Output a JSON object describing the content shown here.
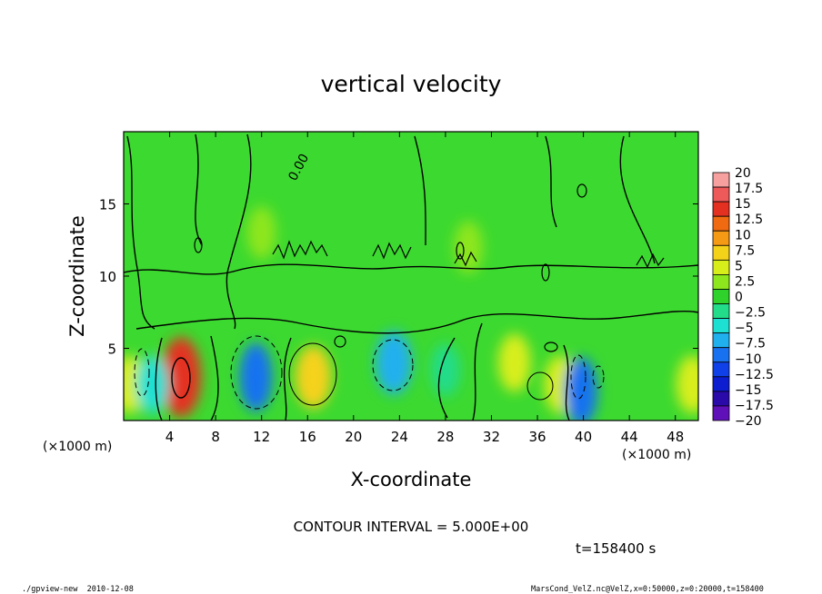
{
  "chart_data": {
    "type": "heatmap",
    "title": "vertical velocity",
    "xlabel": "X-coordinate",
    "ylabel": "Z-coordinate",
    "x_unit_label": "(×1000 m)",
    "y_unit_label": "(×1000 m)",
    "xlim": [
      0,
      50
    ],
    "ylim": [
      0,
      20
    ],
    "x_ticks": [
      "4",
      "8",
      "12",
      "16",
      "20",
      "24",
      "28",
      "32",
      "36",
      "40",
      "44",
      "48"
    ],
    "y_ticks": [
      "5",
      "10",
      "15"
    ],
    "colorbar": {
      "levels": [
        "20",
        "17.5",
        "15",
        "12.5",
        "10",
        "7.5",
        "5",
        "2.5",
        "0",
        "−2.5",
        "−5",
        "−7.5",
        "−10",
        "−12.5",
        "−15",
        "−17.5",
        "−20"
      ],
      "colors": [
        "#f7a0a0",
        "#ee5a5a",
        "#e43020",
        "#ef6a10",
        "#f59a14",
        "#f5d21a",
        "#d8ee1a",
        "#8ee61c",
        "#2ed22a",
        "#22dc8a",
        "#1ee0d2",
        "#20b0ee",
        "#1872f0",
        "#1040e8",
        "#0c1ed0",
        "#2a0aa8",
        "#6010b8"
      ]
    },
    "cells": [
      {
        "x": 0.5,
        "z": 2.5,
        "value": 5
      },
      {
        "x": 5,
        "z": 3,
        "value": 15
      },
      {
        "x": 2.5,
        "z": 2.5,
        "value": -5
      },
      {
        "x": 11.5,
        "z": 3,
        "value": -10
      },
      {
        "x": 16.5,
        "z": 3,
        "value": 7.5
      },
      {
        "x": 23.5,
        "z": 4,
        "value": -7.5
      },
      {
        "x": 28,
        "z": 3.5,
        "value": -2.5
      },
      {
        "x": 34,
        "z": 4,
        "value": 5
      },
      {
        "x": 38,
        "z": 2.5,
        "value": 5
      },
      {
        "x": 39.8,
        "z": 2,
        "value": -10
      },
      {
        "x": 49.5,
        "z": 2.5,
        "value": 5
      },
      {
        "x": 12,
        "z": 13,
        "value": 2.5
      },
      {
        "x": 30,
        "z": 12,
        "value": 2.5
      }
    ],
    "contour_interval": "CONTOUR INTERVAL = 5.000E+00",
    "contour_label": "0.00",
    "time_label": "t=158400 s",
    "footer_left": "./gpview-new  2010-12-08",
    "footer_right": "MarsCond_VelZ.nc@VelZ,x=0:50000,z=0:20000,t=158400"
  }
}
